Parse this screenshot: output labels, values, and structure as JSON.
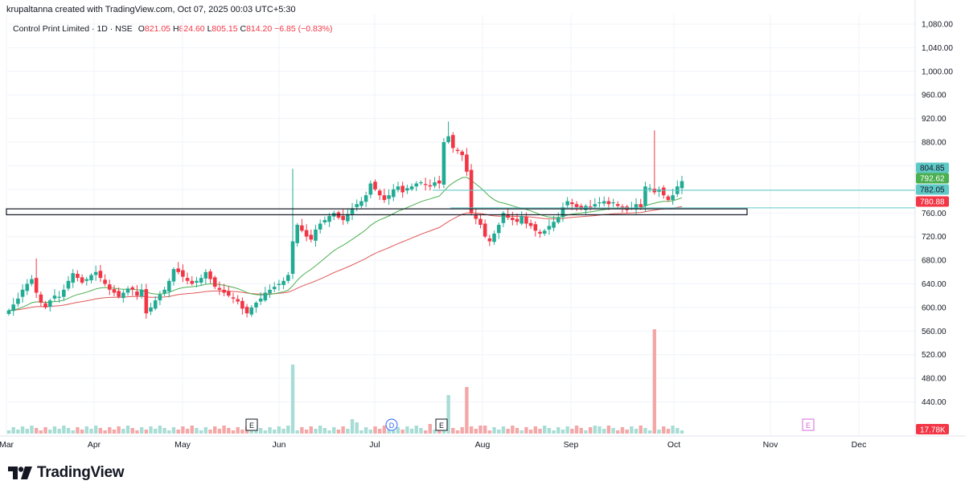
{
  "header": {
    "credit": "krupaltanna created with TradingView.com, Oct 07, 2025 00:03 UTC+5:30",
    "symbol": "Control Print Limited · 1D · NSE",
    "open_label": "O",
    "open": "821.05",
    "high_label": "H",
    "high": "824.60",
    "low_label": "L",
    "low": "805.15",
    "close_label": "C",
    "close": "814.20",
    "change": "−6.85 (−0.83%)"
  },
  "brand": {
    "name": "TradingView",
    "icon": "tradingview-logo-icon"
  },
  "colors": {
    "up": "#22ab94",
    "down": "#f23645",
    "ema_fast": "#4caf50",
    "ema_slow": "#e05858",
    "hline": "#5ec9c6",
    "vol_up": "#a8ddd6",
    "vol_down": "#f4a7a7",
    "box": "#131722",
    "earnings": "#d36bd9",
    "dividend": "#2962ff"
  },
  "chart_data": {
    "type": "candlestick",
    "price_axis": {
      "ticks": [
        1080,
        1040,
        1000,
        960,
        920,
        880,
        840,
        800,
        760,
        720,
        680,
        640,
        600,
        560,
        520,
        480,
        440
      ],
      "tick_labels": [
        "1,080.00",
        "1,040.00",
        "1,000.00",
        "960.00",
        "920.00",
        "880.00",
        "",
        "",
        "760.00",
        "720.00",
        "680.00",
        "640.00",
        "600.00",
        "560.00",
        "520.00",
        "480.00",
        "440.00"
      ]
    },
    "time_axis": [
      "Mar",
      "Apr",
      "May",
      "Jun",
      "Jul",
      "Aug",
      "Sep",
      "Oct",
      "Nov",
      "Dec"
    ],
    "price_labels": [
      {
        "value": "804.85",
        "price": 804.85,
        "color": "#5ec9c6",
        "text_color": "#131722"
      },
      {
        "value": "792.62",
        "price": 792.62,
        "color": "#4caf50",
        "text_color": "#ffffff"
      },
      {
        "value": "782.05",
        "price": 782.05,
        "color": "#5ec9c6",
        "text_color": "#131722"
      },
      {
        "value": "780.88",
        "price": 780.88,
        "color": "#f23645",
        "text_color": "#ffffff"
      }
    ],
    "volume_label": "17.78K",
    "horizontal_lines": [
      782.05,
      780.88
    ],
    "zone": {
      "top": 767,
      "bottom": 757
    },
    "events": [
      {
        "type": "earnings",
        "label": "E"
      },
      {
        "type": "dividend",
        "label": "D"
      },
      {
        "type": "earnings",
        "label": "E"
      },
      {
        "type": "earnings-upcoming",
        "label": "E"
      }
    ],
    "closes": [
      595,
      605,
      615,
      630,
      640,
      648,
      625,
      608,
      600,
      612,
      620,
      618,
      630,
      645,
      658,
      650,
      642,
      648,
      655,
      660,
      650,
      640,
      630,
      625,
      618,
      625,
      632,
      630,
      620,
      630,
      590,
      600,
      612,
      622,
      630,
      645,
      665,
      660,
      652,
      645,
      640,
      645,
      650,
      660,
      648,
      635,
      630,
      625,
      620,
      615,
      610,
      598,
      590,
      600,
      608,
      615,
      625,
      630,
      635,
      640,
      645,
      655,
      712,
      740,
      730,
      720,
      715,
      732,
      742,
      748,
      755,
      760,
      752,
      748,
      758,
      768,
      775,
      780,
      790,
      810,
      800,
      790,
      782,
      790,
      800,
      805,
      795,
      802,
      805,
      810,
      812,
      808,
      805,
      812,
      810,
      880,
      890,
      870,
      865,
      858,
      830,
      760,
      750,
      740,
      720,
      712,
      725,
      740,
      760,
      752,
      748,
      745,
      755,
      742,
      738,
      730,
      725,
      730,
      738,
      745,
      752,
      770,
      780,
      775,
      770,
      768,
      772,
      770,
      775,
      778,
      780,
      775,
      778,
      772,
      770,
      765,
      768,
      775,
      770,
      805,
      802,
      795,
      800,
      790,
      782,
      790,
      805,
      814
    ]
  }
}
